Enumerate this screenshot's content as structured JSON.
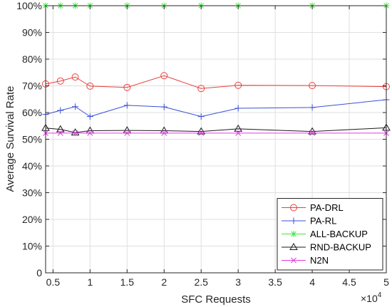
{
  "chart_data": {
    "type": "line",
    "xlabel": "SFC Requests",
    "ylabel": "Average Survival Rate",
    "x_exponent_label": "×10",
    "x_exponent_power": "4",
    "xlim": [
      0.4,
      5
    ],
    "ylim": [
      0,
      1
    ],
    "x": [
      0.4,
      0.6,
      0.8,
      1.0,
      1.5,
      2.0,
      2.5,
      3.0,
      4.0,
      5.0
    ],
    "x_ticks": [
      0.5,
      1,
      1.5,
      2,
      2.5,
      3,
      3.5,
      4,
      4.5,
      5
    ],
    "x_tick_labels": [
      "0.5",
      "1",
      "1.5",
      "2",
      "2.5",
      "3",
      "3.5",
      "4",
      "4.5",
      "5"
    ],
    "y_ticks": [
      0,
      0.1,
      0.2,
      0.3,
      0.4,
      0.5,
      0.6,
      0.7,
      0.8,
      0.9,
      1.0
    ],
    "y_tick_labels": [
      "0",
      "10%",
      "20%",
      "30%",
      "40%",
      "50%",
      "60%",
      "70%",
      "80%",
      "90%",
      "100%"
    ],
    "grid": true,
    "legend_position": "bottom-right",
    "series": [
      {
        "name": "PA-DRL",
        "color": "#e8403c",
        "marker": "circle",
        "values": [
          0.707,
          0.718,
          0.733,
          0.699,
          0.694,
          0.738,
          0.69,
          0.702,
          0.701,
          0.697
        ]
      },
      {
        "name": "PA-RL",
        "color": "#3a4fd8",
        "marker": "plus",
        "values": [
          0.593,
          0.608,
          0.622,
          0.585,
          0.627,
          0.621,
          0.585,
          0.616,
          0.619,
          0.648
        ]
      },
      {
        "name": "ALL-BACKUP",
        "color": "#3ee63e",
        "marker": "asterisk",
        "values": [
          1.0,
          1.0,
          1.0,
          1.0,
          1.0,
          1.0,
          1.0,
          1.0,
          1.0,
          1.0
        ]
      },
      {
        "name": "RND-BACKUP",
        "color": "#1a1a1a",
        "marker": "triangle",
        "values": [
          0.542,
          0.537,
          0.525,
          0.532,
          0.533,
          0.532,
          0.529,
          0.539,
          0.529,
          0.543
        ]
      },
      {
        "name": "N2N",
        "color": "#e23be2",
        "marker": "x",
        "values": [
          0.523,
          0.523,
          0.523,
          0.523,
          0.523,
          0.523,
          0.523,
          0.523,
          0.523,
          0.523
        ]
      }
    ]
  }
}
